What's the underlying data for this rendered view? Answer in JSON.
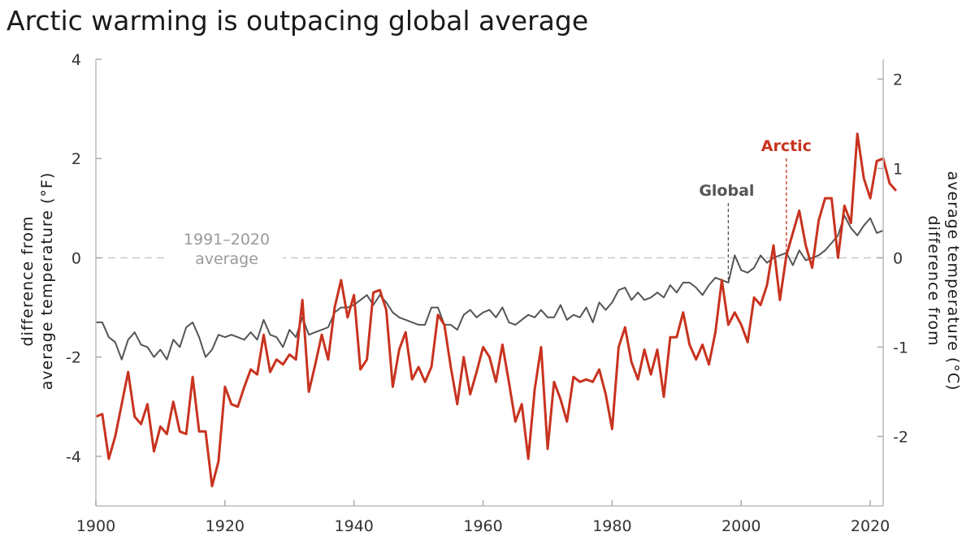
{
  "chart_data": {
    "type": "line",
    "title": "Arctic warming is outpacing global average",
    "ylabel_left": [
      "difference from",
      "average temperature (°F)"
    ],
    "ylabel_right": [
      "difference from",
      "average temperature (°C)"
    ],
    "ylim_left": [
      -5,
      4
    ],
    "ylim_right": [
      -2.7778,
      2.2222
    ],
    "xlim": [
      1900,
      2022
    ],
    "x_ticks": [
      1900,
      1920,
      1940,
      1960,
      1980,
      2000,
      2020
    ],
    "y_ticks_left": [
      -4,
      -2,
      0,
      2,
      4
    ],
    "y_ticks_right": [
      -2,
      -1,
      0,
      1,
      2
    ],
    "grid": false,
    "reference_line": {
      "value": 0,
      "label": [
        "1991–2020",
        "average"
      ]
    },
    "annotations": [
      {
        "text": "Global",
        "series": "Global",
        "year": 1998
      },
      {
        "text": "Arctic",
        "series": "Arctic",
        "year": 2007
      }
    ],
    "series": [
      {
        "name": "Arctic",
        "color": "#c8331f",
        "x_start": 1900,
        "values": [
          -3.2,
          -3.15,
          -4.05,
          -3.6,
          -2.95,
          -2.3,
          -3.2,
          -3.35,
          -2.95,
          -3.9,
          -3.4,
          -3.55,
          -2.9,
          -3.5,
          -3.55,
          -2.4,
          -3.5,
          -3.5,
          -4.6,
          -4.1,
          -2.6,
          -2.95,
          -3.0,
          -2.6,
          -2.25,
          -2.35,
          -1.55,
          -2.3,
          -2.05,
          -2.15,
          -1.95,
          -2.05,
          -0.85,
          -2.7,
          -2.15,
          -1.55,
          -2.05,
          -1.0,
          -0.45,
          -1.2,
          -0.75,
          -2.25,
          -2.05,
          -0.7,
          -0.65,
          -1.05,
          -2.6,
          -1.85,
          -1.5,
          -2.45,
          -2.2,
          -2.5,
          -2.2,
          -1.15,
          -1.35,
          -2.2,
          -2.95,
          -2.0,
          -2.75,
          -2.3,
          -1.8,
          -2.0,
          -2.5,
          -1.75,
          -2.5,
          -3.3,
          -2.95,
          -4.05,
          -2.65,
          -1.8,
          -3.85,
          -2.5,
          -2.85,
          -3.3,
          -2.4,
          -2.5,
          -2.45,
          -2.5,
          -2.25,
          -2.75,
          -3.45,
          -1.8,
          -1.4,
          -2.1,
          -2.45,
          -1.85,
          -2.35,
          -1.85,
          -2.8,
          -1.6,
          -1.6,
          -1.1,
          -1.75,
          -2.05,
          -1.75,
          -2.15,
          -1.5,
          -0.45,
          -1.35,
          -1.1,
          -1.35,
          -1.7,
          -0.8,
          -0.95,
          -0.55,
          0.25,
          -0.85,
          0.05,
          0.5,
          0.95,
          0.25,
          -0.2,
          0.75,
          1.2,
          1.2,
          0.0,
          1.05,
          0.7,
          2.5,
          1.6,
          1.2,
          1.95,
          2.0,
          1.5,
          1.35
        ]
      },
      {
        "name": "Global",
        "color": "#555555",
        "x_start": 1900,
        "values": [
          -1.3,
          -1.3,
          -1.6,
          -1.7,
          -2.05,
          -1.65,
          -1.5,
          -1.75,
          -1.8,
          -2.0,
          -1.85,
          -2.05,
          -1.65,
          -1.8,
          -1.4,
          -1.3,
          -1.6,
          -2.0,
          -1.85,
          -1.55,
          -1.6,
          -1.55,
          -1.6,
          -1.65,
          -1.5,
          -1.65,
          -1.25,
          -1.55,
          -1.6,
          -1.8,
          -1.45,
          -1.6,
          -1.2,
          -1.55,
          -1.5,
          -1.45,
          -1.4,
          -1.1,
          -1.0,
          -1.0,
          -0.95,
          -0.85,
          -0.75,
          -0.95,
          -0.75,
          -0.9,
          -1.1,
          -1.2,
          -1.25,
          -1.3,
          -1.35,
          -1.35,
          -1.0,
          -1.0,
          -1.35,
          -1.35,
          -1.45,
          -1.15,
          -1.05,
          -1.2,
          -1.1,
          -1.05,
          -1.2,
          -1.0,
          -1.3,
          -1.35,
          -1.25,
          -1.15,
          -1.2,
          -1.05,
          -1.2,
          -1.2,
          -0.95,
          -1.25,
          -1.15,
          -1.2,
          -1.0,
          -1.3,
          -0.9,
          -1.05,
          -0.9,
          -0.65,
          -0.6,
          -0.85,
          -0.7,
          -0.85,
          -0.8,
          -0.7,
          -0.8,
          -0.55,
          -0.7,
          -0.5,
          -0.5,
          -0.6,
          -0.75,
          -0.55,
          -0.4,
          -0.45,
          -0.5,
          0.05,
          -0.25,
          -0.3,
          -0.2,
          0.05,
          -0.1,
          0.0,
          0.05,
          0.1,
          -0.15,
          0.15,
          -0.05,
          0.0,
          0.05,
          0.15,
          0.3,
          0.45,
          0.85,
          0.6,
          0.45,
          0.65,
          0.8,
          0.5,
          0.55
        ]
      }
    ]
  }
}
